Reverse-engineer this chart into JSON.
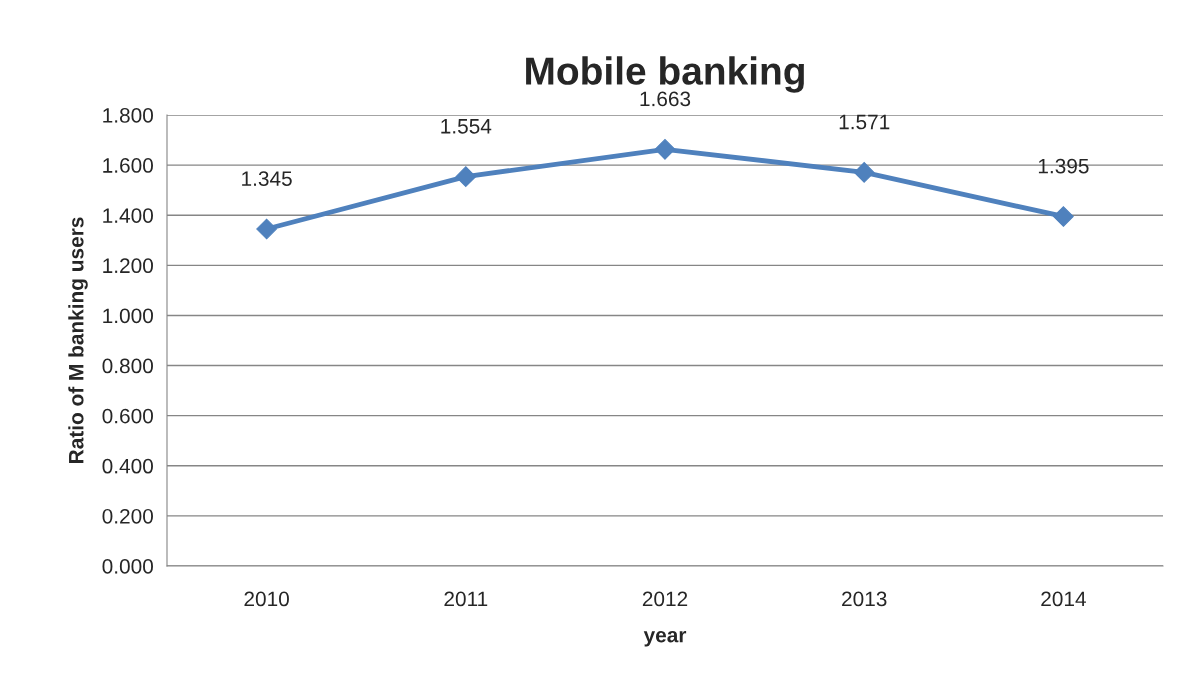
{
  "chart_data": {
    "type": "line",
    "title": "Mobile banking",
    "xlabel": "year",
    "ylabel": "Ratio of M banking users",
    "categories": [
      "2010",
      "2011",
      "2012",
      "2013",
      "2014"
    ],
    "series": [
      {
        "color": "#4f81bd",
        "values": [
          1.345,
          1.554,
          1.663,
          1.571,
          1.395
        ]
      }
    ],
    "ylim": [
      0,
      1.8
    ],
    "yticks": [
      {
        "value": 0,
        "label": "0.000"
      },
      {
        "value": 0.2,
        "label": "0.200"
      },
      {
        "value": 0.4,
        "label": "0.400"
      },
      {
        "value": 0.6,
        "label": "0.600"
      },
      {
        "value": 0.8,
        "label": "0.800"
      },
      {
        "value": 1.0,
        "label": "1.000"
      },
      {
        "value": 1.2,
        "label": "1.200"
      },
      {
        "value": 1.4,
        "label": "1.400"
      },
      {
        "value": 1.6,
        "label": "1.600"
      },
      {
        "value": 1.8,
        "label": "1.800"
      }
    ],
    "grid": "y",
    "marker": "diamond",
    "line_style": "solid",
    "data_labels": true
  }
}
